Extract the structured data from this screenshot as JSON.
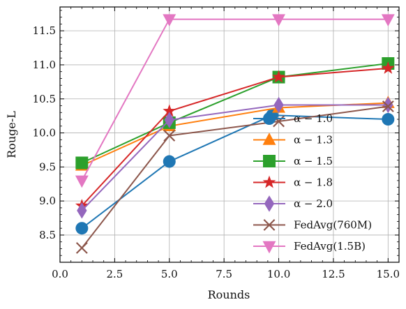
{
  "chart_data": {
    "type": "line",
    "xlabel": "Rounds",
    "ylabel": "Rouge-L",
    "xlim": [
      0.0,
      15.5
    ],
    "ylim": [
      8.1,
      11.85
    ],
    "xticks": [
      0.0,
      2.5,
      5.0,
      7.5,
      10.0,
      12.5,
      15.0
    ],
    "xtick_labels": [
      "0.0",
      "2.5",
      "5.0",
      "7.5",
      "10.0",
      "12.5",
      "15.0"
    ],
    "yticks": [
      8.5,
      9.0,
      9.5,
      10.0,
      10.5,
      11.0,
      11.5
    ],
    "ytick_labels": [
      "8.5",
      "9.0",
      "9.5",
      "10.0",
      "10.5",
      "11.0",
      "11.5"
    ],
    "grid": true,
    "legend_position": "lower-right",
    "series": [
      {
        "name": "α − 1.0",
        "color": "#1f77b4",
        "marker": "circle",
        "x": [
          1,
          5,
          9.7,
          15
        ],
        "y": [
          8.6,
          9.58,
          10.26,
          10.2
        ]
      },
      {
        "name": "α − 1.3",
        "color": "#ff7f0e",
        "marker": "triangle-up",
        "x": [
          1,
          5,
          10,
          15
        ],
        "y": [
          9.52,
          10.1,
          10.37,
          10.44
        ]
      },
      {
        "name": "α − 1.5",
        "color": "#2ca02c",
        "marker": "square",
        "x": [
          1,
          5,
          10,
          15
        ],
        "y": [
          9.56,
          10.15,
          10.82,
          11.02
        ]
      },
      {
        "name": "α − 1.8",
        "color": "#d62728",
        "marker": "star",
        "x": [
          1,
          5,
          10,
          15
        ],
        "y": [
          8.93,
          10.32,
          10.82,
          10.95
        ]
      },
      {
        "name": "α − 2.0",
        "color": "#9467bd",
        "marker": "diamond",
        "x": [
          1,
          5,
          10,
          15
        ],
        "y": [
          8.86,
          10.19,
          10.41,
          10.41
        ]
      },
      {
        "name": "FedAvg(760M)",
        "color": "#8c564b",
        "marker": "x",
        "x": [
          1,
          5,
          10,
          15
        ],
        "y": [
          8.31,
          9.96,
          10.17,
          10.39
        ]
      },
      {
        "name": "FedAvg(1.5B)",
        "color": "#e377c2",
        "marker": "triangle-down",
        "x": [
          1,
          5,
          10,
          15
        ],
        "y": [
          9.3,
          11.67,
          11.67,
          11.67
        ]
      }
    ]
  }
}
